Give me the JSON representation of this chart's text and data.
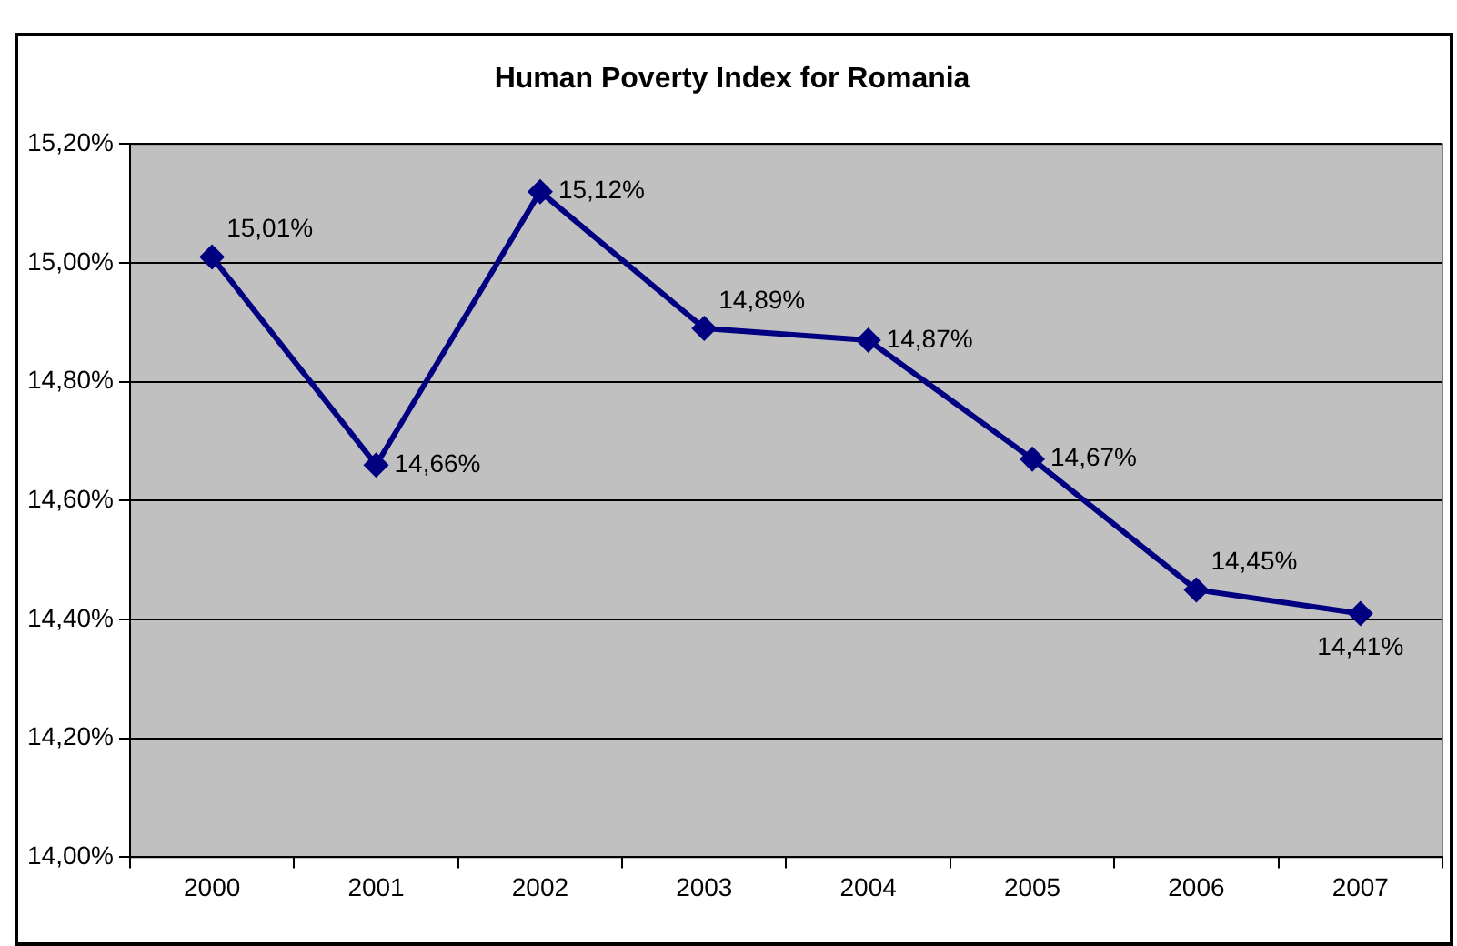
{
  "chart_data": {
    "type": "line",
    "title": "Human Poverty Index for Romania",
    "categories": [
      "2000",
      "2001",
      "2002",
      "2003",
      "2004",
      "2005",
      "2006",
      "2007"
    ],
    "series": [
      {
        "color": "#000080",
        "values": [
          15.01,
          14.66,
          15.12,
          14.89,
          14.87,
          14.67,
          14.45,
          14.41
        ],
        "value_labels": [
          "15,01%",
          "14,66%",
          "15,12%",
          "14,89%",
          "14,87%",
          "14,67%",
          "14,45%",
          "14,41%"
        ]
      }
    ],
    "ylim": [
      14.0,
      15.2
    ],
    "yticks": [
      {
        "value": 14.0,
        "label": "14,00%"
      },
      {
        "value": 14.2,
        "label": "14,20%"
      },
      {
        "value": 14.4,
        "label": "14,40%"
      },
      {
        "value": 14.6,
        "label": "14,60%"
      },
      {
        "value": 14.8,
        "label": "14,80%"
      },
      {
        "value": 15.0,
        "label": "15,00%"
      },
      {
        "value": 15.2,
        "label": "15,20%"
      }
    ],
    "grid": "y",
    "legend": false,
    "marker": "diamond",
    "line_style": "solid"
  }
}
